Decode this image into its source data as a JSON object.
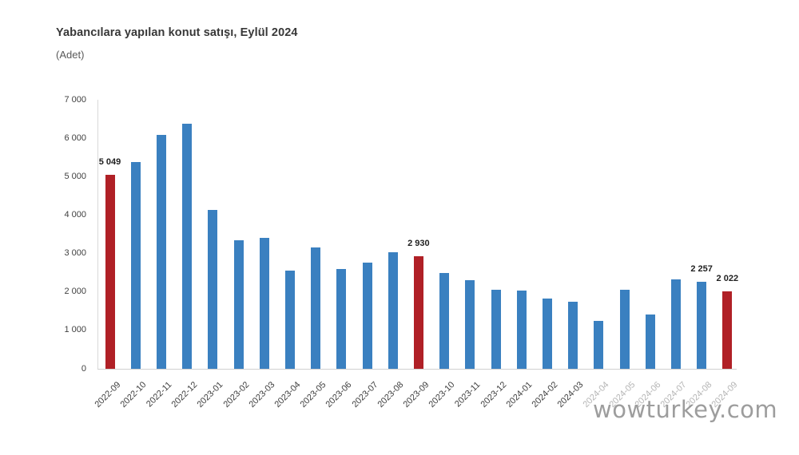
{
  "watermark": {
    "text": "wowturkey.com"
  },
  "chart_data": {
    "type": "bar",
    "title": "Yabancılara yapılan konut satışı, Eylül 2024",
    "unit_label": "(Adet)",
    "categories": [
      "2022-09",
      "2022-10",
      "2022-11",
      "2022-12",
      "2023-01",
      "2023-02",
      "2023-03",
      "2023-04",
      "2023-05",
      "2023-06",
      "2023-07",
      "2023-08",
      "2023-09",
      "2023-10",
      "2023-11",
      "2023-12",
      "2024-01",
      "2024-02",
      "2024-03",
      "2024-04",
      "2024-05",
      "2024-06",
      "2024-07",
      "2024-08",
      "2024-09"
    ],
    "values": [
      5049,
      5390,
      6090,
      6390,
      4140,
      3340,
      3410,
      2550,
      3160,
      2590,
      2770,
      3040,
      2930,
      2500,
      2310,
      2050,
      2040,
      1820,
      1750,
      1240,
      2050,
      1410,
      2330,
      2257,
      2022
    ],
    "bar_color": "#3a80c0",
    "highlight_color": "#b02026",
    "highlighted_indices": [
      0,
      12,
      24
    ],
    "data_labels": [
      {
        "index": 0,
        "label": "5 049"
      },
      {
        "index": 12,
        "label": "2 930"
      },
      {
        "index": 23,
        "label": "2 257"
      },
      {
        "index": 24,
        "label": "2 022"
      }
    ],
    "faded_category_indices": [
      19,
      20,
      21,
      22,
      23,
      24
    ],
    "xlabel": "",
    "ylabel": "",
    "ylim": [
      0,
      7000
    ],
    "y_tick_labels": [
      "0",
      "1 000",
      "2 000",
      "3 000",
      "4 000",
      "5 000",
      "6 000",
      "7 000"
    ],
    "grid": false,
    "legend": "none",
    "axis_color": "#d9d9d9"
  }
}
